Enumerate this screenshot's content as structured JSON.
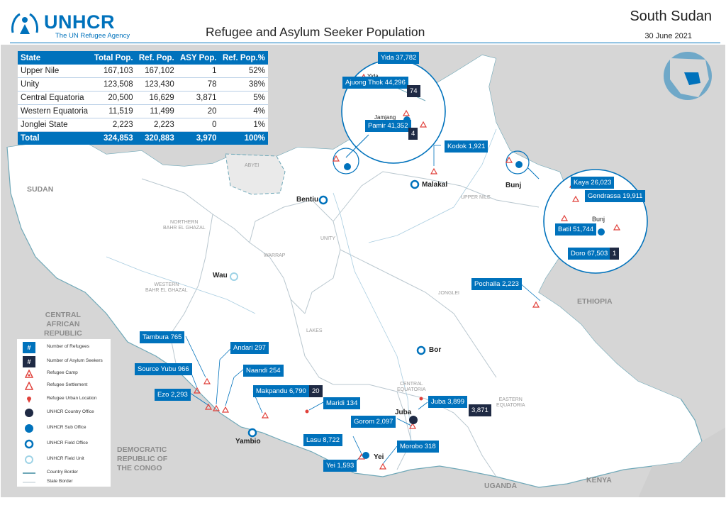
{
  "header": {
    "logo_word": "UNHCR",
    "logo_sub": "The UN Refugee Agency",
    "title": "Refugee and Asylum Seeker Population",
    "country": "South Sudan",
    "date": "30 June 2021"
  },
  "table": {
    "columns": [
      "State",
      "Total Pop.",
      "Ref. Pop.",
      "ASY Pop.",
      "Ref. Pop.%"
    ],
    "rows": [
      [
        "Upper Nile",
        "167,103",
        "167,102",
        "1",
        "52%"
      ],
      [
        "Unity",
        "123,508",
        "123,430",
        "78",
        "38%"
      ],
      [
        "Central Equatoria",
        "20,500",
        "16,629",
        "3,871",
        "5%"
      ],
      [
        "Western Equatoria",
        "11,519",
        "11,499",
        "20",
        "4%"
      ],
      [
        "Jonglei State",
        "2,223",
        "2,223",
        "0",
        "1%"
      ]
    ],
    "total": [
      "Total",
      "324,853",
      "320,883",
      "3,970",
      "100%"
    ]
  },
  "places": {
    "bentiu": "Bentiu",
    "malakal": "Malakal",
    "bunj": "Bunj",
    "bunj_inset": "Bunj",
    "wau": "Wau",
    "bor": "Bor",
    "juba": "Juba",
    "yambio": "Yambio",
    "yei": "Yei",
    "yida": "Yida",
    "jamjang": "Jamjang"
  },
  "regions": {
    "abyei": "ABYEI",
    "upper_nile": "UPPER NILE",
    "nbeg": "NORTHERN\nBAHR EL GHAZAL",
    "unity": "UNITY",
    "warrap": "WARRAP",
    "wbeg": "WESTERN\nBAHR EL GHAZAL",
    "jonglei": "JONGLEI",
    "lakes": "LAKES",
    "ceq": "CENTRAL\nEQUATORIA",
    "eeq": "EASTERN\nEQUATORIA"
  },
  "countries": {
    "sudan": "SUDAN",
    "ethiopia": "ETHIOPIA",
    "car": "CENTRAL\nAFRICAN\nREPUBLIC",
    "drc": "DEMOCRATIC\nREPUBLIC OF\nTHE CONGO",
    "uganda": "UGANDA",
    "kenya": "KENYA"
  },
  "labels": {
    "yida": "Yida 37,782",
    "ajuong": "Ajuong Thok 44,296",
    "ajuong_asy": "74",
    "pamir": "Pamir 41,352",
    "pamir_asy": "4",
    "kodok": "Kodok 1,921",
    "kaya": "Kaya 26,023",
    "gendrassa": "Gendrassa 19,911",
    "batil": "Batil 51,744",
    "doro": "Doro 67,503",
    "doro_asy": "1",
    "pochalla": "Pochalla 2,223",
    "tambura": "Tambura 765",
    "andari": "Andari 297",
    "source_yubu": "Source Yubu 966",
    "naandi": "Naandi 254",
    "ezo": "Ezo 2,293",
    "makpandu": "Makpandu 6,790",
    "makpandu_asy": "20",
    "maridi": "Maridi 134",
    "juba": "Juba 3,899",
    "juba_asy": "3,871",
    "gorom": "Gorom 2,097",
    "lasu": "Lasu 8,722",
    "morobo": "Morobo 318",
    "yei": "Yei 1,593"
  },
  "legend": [
    {
      "icon": "number-of-refugees-icon",
      "label": "Number of Refugees"
    },
    {
      "icon": "number-of-asylum-seekers-icon",
      "label": "Number of Asylum Seekers"
    },
    {
      "icon": "refugee-camp-icon",
      "label": "Refugee Camp"
    },
    {
      "icon": "refugee-settlement-icon",
      "label": "Refugee Settlement"
    },
    {
      "icon": "refugee-urban-location-icon",
      "label": "Refugee Urban Location"
    },
    {
      "icon": "unhcr-country-office-icon",
      "label": "UNHCR Country Office"
    },
    {
      "icon": "unhcr-sub-office-icon",
      "label": "UNHCR Sub Office"
    },
    {
      "icon": "unhcr-field-office-icon",
      "label": "UNHCR Field Office"
    },
    {
      "icon": "unhcr-field-unit-icon",
      "label": "UNHCR Field Unit"
    },
    {
      "icon": "country-border-icon",
      "label": "Country Border"
    },
    {
      "icon": "state-border-icon",
      "label": "State Border"
    }
  ],
  "legend_symbols": {
    "hash": "#"
  },
  "colors": {
    "unhcr_blue": "#0072bc",
    "asylum_navy": "#1f2a44",
    "camp_red": "#e0403a",
    "land": "#ffffff",
    "neighbor": "#d6d6d6"
  }
}
